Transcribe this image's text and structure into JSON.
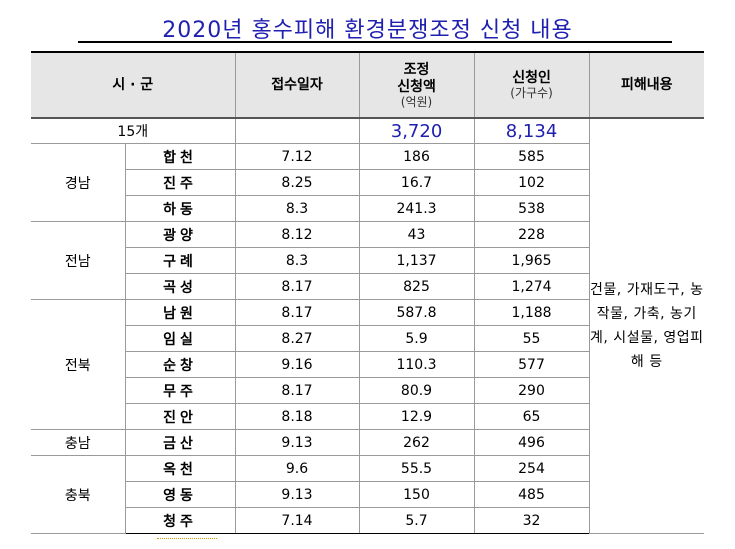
{
  "title": "2020년 홍수피해 환경분쟁조정 신청 내용",
  "header": {
    "region": "시 · 군",
    "date": "접수일자",
    "amount_line1": "조정",
    "amount_line2": "신청액",
    "amount_unit": "(억원)",
    "applicants": "신청인",
    "applicants_unit": "(가구수)",
    "damage": "피해내용"
  },
  "total": {
    "count": "15개",
    "amount": "3,720",
    "applicants": "8,134"
  },
  "damage_text": "건물, 가재도구, 농작물, 가축, 농기계, 시설물, 영업피해 등",
  "provinces": [
    {
      "name": "경남",
      "rows": [
        {
          "district": "합천",
          "date": "7.12",
          "amount": "186",
          "applicants": "585"
        },
        {
          "district": "진주",
          "date": "8.25",
          "amount": "16.7",
          "applicants": "102"
        },
        {
          "district": "하동",
          "date": "8.3",
          "amount": "241.3",
          "applicants": "538"
        }
      ]
    },
    {
      "name": "전남",
      "rows": [
        {
          "district": "광양",
          "date": "8.12",
          "amount": "43",
          "applicants": "228"
        },
        {
          "district": "구례",
          "date": "8.3",
          "amount": "1,137",
          "applicants": "1,965"
        },
        {
          "district": "곡성",
          "date": "8.17",
          "amount": "825",
          "applicants": "1,274"
        }
      ]
    },
    {
      "name": "전북",
      "rows": [
        {
          "district": "남원",
          "date": "8.17",
          "amount": "587.8",
          "applicants": "1,188"
        },
        {
          "district": "임실",
          "date": "8.27",
          "amount": "5.9",
          "applicants": "55"
        },
        {
          "district": "순창",
          "date": "9.16",
          "amount": "110.3",
          "applicants": "577"
        },
        {
          "district": "무주",
          "date": "8.17",
          "amount": "80.9",
          "applicants": "290"
        },
        {
          "district": "진안",
          "date": "8.18",
          "amount": "12.9",
          "applicants": "65"
        }
      ]
    },
    {
      "name": "충남",
      "rows": [
        {
          "district": "금산",
          "date": "9.13",
          "amount": "262",
          "applicants": "496"
        }
      ]
    },
    {
      "name": "충북",
      "rows": [
        {
          "district": "옥천",
          "date": "9.6",
          "amount": "55.5",
          "applicants": "254"
        },
        {
          "district": "영동",
          "date": "9.13",
          "amount": "150",
          "applicants": "485"
        },
        {
          "district": "청주",
          "date": "7.14",
          "amount": "5.7",
          "applicants": "32"
        }
      ]
    }
  ]
}
